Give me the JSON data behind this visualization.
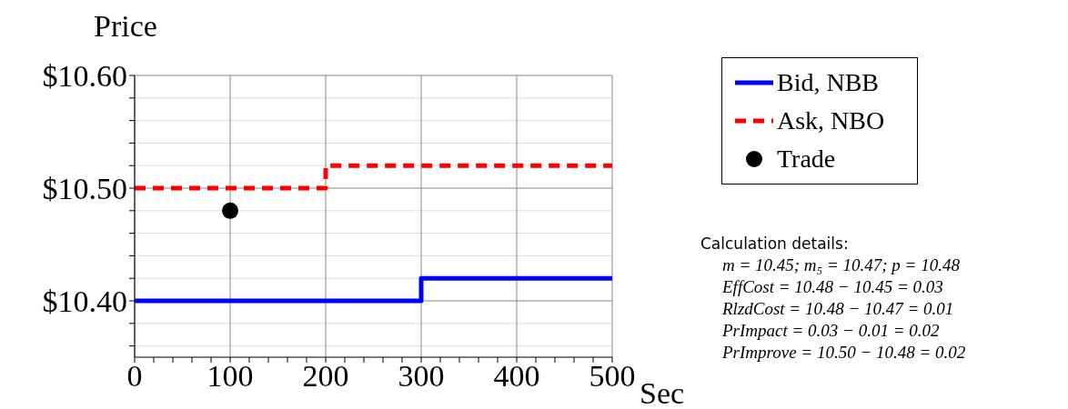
{
  "chart_data": {
    "type": "step",
    "ylabel": "Price",
    "xlabel": "Sec",
    "xlim": [
      0,
      500
    ],
    "xticks": [
      0,
      {
        "value": 20,
        "label": null
      },
      {
        "value": 40,
        "label": null
      },
      {
        "value": 60,
        "label": null
      },
      {
        "value": 80,
        "label": null
      },
      100,
      {
        "value": 120,
        "label": null
      },
      {
        "value": 140,
        "label": null
      },
      {
        "value": 160,
        "label": null
      },
      {
        "value": 180,
        "label": null
      },
      200,
      {
        "value": 220,
        "label": null
      },
      {
        "value": 240,
        "label": null
      },
      {
        "value": 260,
        "label": null
      },
      {
        "value": 280,
        "label": null
      },
      300,
      {
        "value": 320,
        "label": null
      },
      {
        "value": 340,
        "label": null
      },
      {
        "value": 360,
        "label": null
      },
      {
        "value": 380,
        "label": null
      },
      400,
      {
        "value": 420,
        "label": null
      },
      {
        "value": 440,
        "label": null
      },
      {
        "value": 460,
        "label": null
      },
      {
        "value": 480,
        "label": null
      },
      500
    ],
    "ylim": [
      10.35,
      10.6
    ],
    "yticks": [
      {
        "value": 10.36,
        "label": null
      },
      {
        "value": 10.38,
        "label": null
      },
      {
        "value": 10.4,
        "label": "$10.40"
      },
      {
        "value": 10.42,
        "label": null
      },
      {
        "value": 10.44,
        "label": null
      },
      {
        "value": 10.46,
        "label": null
      },
      {
        "value": 10.48,
        "label": null
      },
      {
        "value": 10.5,
        "label": "$10.50"
      },
      {
        "value": 10.52,
        "label": null
      },
      {
        "value": 10.54,
        "label": null
      },
      {
        "value": 10.56,
        "label": null
      },
      {
        "value": 10.58,
        "label": null
      },
      {
        "value": 10.6,
        "label": "$10.60"
      }
    ],
    "grid": true,
    "legend": "right",
    "series": [
      {
        "name": "Bid, NBB",
        "color": "#0000ff",
        "line_style": "solid",
        "x": [
          0,
          300,
          500
        ],
        "values": [
          10.4,
          10.42,
          10.42
        ]
      },
      {
        "name": "Ask, NBO",
        "color": "#ff0000",
        "line_style": "dashed",
        "x": [
          0,
          200,
          500
        ],
        "values": [
          10.5,
          10.52,
          10.52
        ]
      },
      {
        "name": "Trade",
        "type": "scatter",
        "color": "#000000",
        "marker": "circle",
        "x": [
          100
        ],
        "values": [
          10.48
        ]
      }
    ],
    "annotations": [
      "Calculation details:",
      "m = 10.45; m₅ = 10.47; p = 10.48",
      "EffCost = 10.48 − 10.45 = 0.03",
      "RlzdCost = 10.48 − 10.47 = 0.01",
      "PrImpact = 0.03 − 0.01 = 0.02",
      "PrImprove = 10.50 − 10.48 = 0.02"
    ]
  }
}
